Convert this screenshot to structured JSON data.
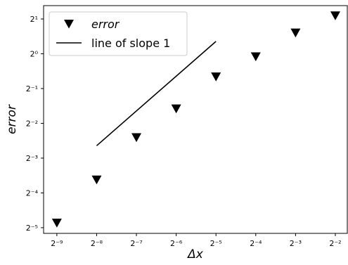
{
  "chart_data": {
    "type": "scatter",
    "xlabel": "Δx",
    "ylabel": "error",
    "xscale": "log2",
    "yscale": "log2",
    "xlim": [
      0.00155,
      0.308
    ],
    "ylim": [
      0.0279,
      2.61
    ],
    "xticks": [
      {
        "value": 0.001953125,
        "label": "2⁻⁹"
      },
      {
        "value": 0.00390625,
        "label": "2⁻⁸"
      },
      {
        "value": 0.0078125,
        "label": "2⁻⁷"
      },
      {
        "value": 0.015625,
        "label": "2⁻⁶"
      },
      {
        "value": 0.03125,
        "label": "2⁻⁵"
      },
      {
        "value": 0.0625,
        "label": "2⁻⁴"
      },
      {
        "value": 0.125,
        "label": "2⁻³"
      },
      {
        "value": 0.25,
        "label": "2⁻²"
      }
    ],
    "yticks": [
      {
        "value": 0.03125,
        "label": "2⁻⁵"
      },
      {
        "value": 0.0625,
        "label": "2⁻⁴"
      },
      {
        "value": 0.125,
        "label": "2⁻³"
      },
      {
        "value": 0.25,
        "label": "2⁻²"
      },
      {
        "value": 0.5,
        "label": "2⁻¹"
      },
      {
        "value": 1,
        "label": "2⁰"
      },
      {
        "value": 2,
        "label": "2¹"
      }
    ],
    "legend": "upper left",
    "series": [
      {
        "name": "error",
        "kind": "scatter",
        "marker": "triangle-down",
        "color": "#000000",
        "x": [
          0.001953125,
          0.00390625,
          0.0078125,
          0.015625,
          0.03125,
          0.0625,
          0.125,
          0.25
        ],
        "values": [
          0.0344,
          0.0813,
          0.189,
          0.335,
          0.633,
          0.946,
          1.52,
          2.14
        ]
      },
      {
        "name": "line of slope 1",
        "kind": "line",
        "color": "#000000",
        "x": [
          0.00390625,
          0.03125
        ],
        "values": [
          0.16,
          1.28
        ]
      }
    ]
  }
}
